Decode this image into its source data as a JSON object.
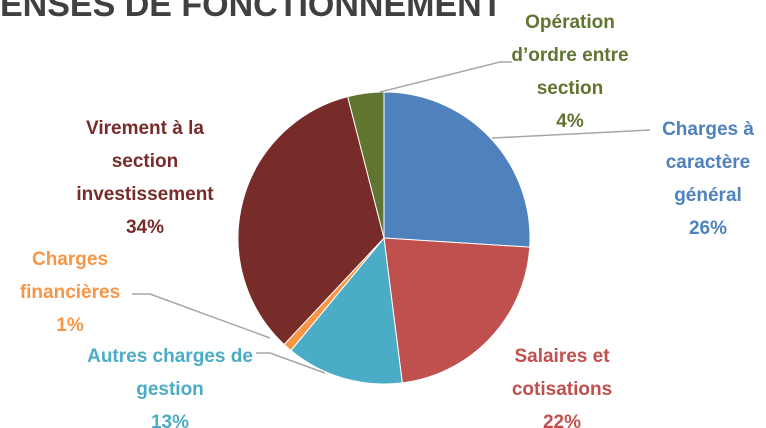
{
  "chart_data": {
    "type": "pie",
    "title": "ENSES DE FONCTIONNEMENT",
    "categories": [
      "Charges à caractère général",
      "Salaires et cotisations",
      "Autres charges de gestion",
      "Charges financières",
      "Virement à la section investissement",
      "Opération d’ordre entre section"
    ],
    "values": [
      26,
      22,
      13,
      1,
      34,
      4
    ],
    "value_labels": [
      "26%",
      "22%",
      "13%",
      "1%",
      "34%",
      "4%"
    ],
    "colors": [
      "#4f81bd",
      "#c0504d",
      "#4bacc6",
      "#f79646",
      "#772c2a",
      "#5f7530"
    ],
    "label_colors": [
      "#4f81bd",
      "#c0504d",
      "#4bacc6",
      "#f79646",
      "#772c2a",
      "#5f7530"
    ]
  }
}
